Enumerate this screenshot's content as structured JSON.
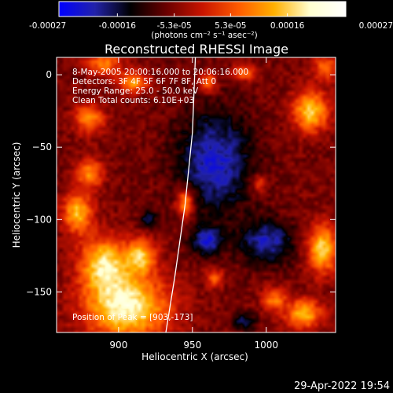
{
  "colorbar": {
    "tick_labels": [
      "-0.00027",
      "-0.00016",
      "-5.3e-05",
      "5.3e-05",
      "0.00016",
      "0.00027"
    ],
    "tick_values": [
      -0.00027,
      -0.00016,
      -5.3e-05,
      5.3e-05,
      0.00016,
      0.00027
    ],
    "range": [
      -0.00027,
      0.00027
    ],
    "units_label": "(photons cm⁻² s⁻¹ asec⁻²)",
    "stops": [
      "#0000ff",
      "#2222aa",
      "#000000",
      "#6a0000",
      "#c81400",
      "#ff5a00",
      "#ffb000",
      "#ffffd0",
      "#ffffff"
    ]
  },
  "chart_data": {
    "type": "heatmap",
    "title": "Reconstructed RHESSI Image",
    "xlabel": "Heliocentric X (arcsec)",
    "ylabel": "Heliocentric Y (arcsec)",
    "xlim": [
      858,
      1047
    ],
    "ylim": [
      -178,
      12
    ],
    "x_ticks": [
      900,
      950,
      1000
    ],
    "y_ticks": [
      0,
      -50,
      -100,
      -150
    ],
    "x_tick_labels": [
      "900",
      "950",
      "1000"
    ],
    "y_tick_labels": [
      "0",
      "−50",
      "−100",
      "−150"
    ],
    "annotations": [
      "8-May-2005 20:00:16.000 to 20:06:16.000",
      "Detectors: 3F 4F 5F 6F 7F 8F, Att 0",
      "Energy Range: 25.0 - 50.0 keV",
      "Clean     Total counts: 6.10E+03"
    ],
    "peak_label": "Position of Peak = [903,-173]",
    "peak_position": [
      903,
      -173
    ],
    "limb_curve": [
      [
        952,
        12
      ],
      [
        950,
        -40
      ],
      [
        945,
        -90
      ],
      [
        938,
        -140
      ],
      [
        932,
        -178
      ]
    ],
    "hot_regions": [
      {
        "x": 905,
        "y": -160,
        "sx": 28,
        "sy": 22,
        "v": 1.0
      },
      {
        "x": 890,
        "y": -130,
        "sx": 16,
        "sy": 18,
        "v": 0.85
      },
      {
        "x": 915,
        "y": -125,
        "sx": 10,
        "sy": 12,
        "v": 0.7
      },
      {
        "x": 872,
        "y": -95,
        "sx": 10,
        "sy": 14,
        "v": 0.75
      },
      {
        "x": 880,
        "y": -68,
        "sx": 9,
        "sy": 10,
        "v": 0.6
      },
      {
        "x": 880,
        "y": -30,
        "sx": 10,
        "sy": 10,
        "v": 0.6
      },
      {
        "x": 890,
        "y": 8,
        "sx": 12,
        "sy": 8,
        "v": 0.55
      },
      {
        "x": 910,
        "y": -5,
        "sx": 10,
        "sy": 7,
        "v": 0.65
      },
      {
        "x": 945,
        "y": -88,
        "sx": 6,
        "sy": 10,
        "v": 0.75
      },
      {
        "x": 960,
        "y": -5,
        "sx": 6,
        "sy": 7,
        "v": 0.55
      },
      {
        "x": 985,
        "y": 2,
        "sx": 7,
        "sy": 6,
        "v": 0.5
      },
      {
        "x": 1030,
        "y": -25,
        "sx": 12,
        "sy": 14,
        "v": 0.8
      },
      {
        "x": 1040,
        "y": 5,
        "sx": 8,
        "sy": 8,
        "v": 0.55
      },
      {
        "x": 1038,
        "y": -120,
        "sx": 10,
        "sy": 16,
        "v": 0.85
      },
      {
        "x": 1025,
        "y": -165,
        "sx": 12,
        "sy": 10,
        "v": 0.75
      },
      {
        "x": 1005,
        "y": -155,
        "sx": 8,
        "sy": 8,
        "v": 0.55
      },
      {
        "x": 965,
        "y": -140,
        "sx": 6,
        "sy": 6,
        "v": 0.45
      },
      {
        "x": 995,
        "y": -75,
        "sx": 6,
        "sy": 6,
        "v": 0.4
      }
    ],
    "cold_regions": [
      {
        "x": 965,
        "y": -60,
        "sx": 25,
        "sy": 35,
        "v": -0.6
      },
      {
        "x": 1000,
        "y": -115,
        "sx": 18,
        "sy": 15,
        "v": -0.55
      },
      {
        "x": 960,
        "y": -115,
        "sx": 10,
        "sy": 10,
        "v": -0.6
      },
      {
        "x": 920,
        "y": -100,
        "sx": 6,
        "sy": 6,
        "v": -0.4
      },
      {
        "x": 985,
        "y": -170,
        "sx": 8,
        "sy": 6,
        "v": -0.4
      }
    ]
  },
  "footer": {
    "timestamp": "29-Apr-2022 19:54"
  }
}
